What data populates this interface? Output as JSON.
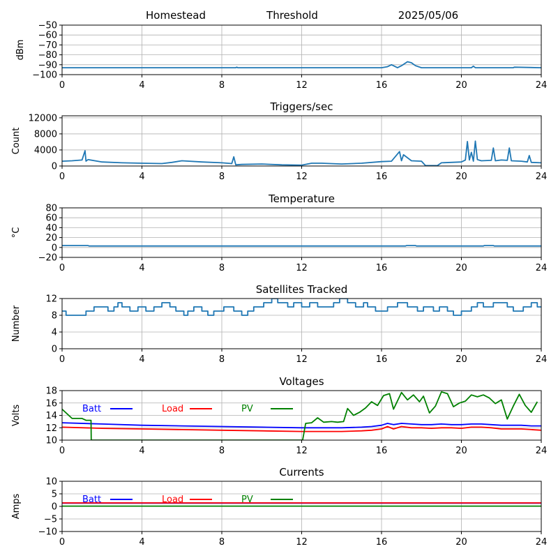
{
  "header": {
    "station": "Homestead",
    "mode": "Threshold",
    "date": "2025/05/06"
  },
  "chart_data": [
    {
      "type": "line",
      "title": "",
      "ylabel": "dBm",
      "xlim": [
        0,
        24
      ],
      "ylim": [
        -100,
        -50
      ],
      "x_ticks": [
        0,
        4,
        8,
        12,
        16,
        20,
        24
      ],
      "y_ticks": [
        -100,
        -90,
        -80,
        -70,
        -60,
        -50
      ],
      "y_tick_labels": [
        "−100",
        "−90",
        "−80",
        "−70",
        "−60",
        "−50"
      ],
      "grid": true,
      "series": [
        {
          "color": "#1f77b4",
          "x": [
            0,
            8.7,
            8.75,
            8.8,
            16,
            16.3,
            16.5,
            16.8,
            17.0,
            17.3,
            17.5,
            17.7,
            18.0,
            18.3,
            20.5,
            20.6,
            20.7,
            22.6,
            22.65,
            24
          ],
          "y": [
            -93,
            -93,
            -92.5,
            -93,
            -93,
            -92,
            -90,
            -93,
            -91,
            -87,
            -88,
            -91,
            -93,
            -93,
            -93,
            -91.5,
            -93,
            -93,
            -92.5,
            -93
          ]
        }
      ]
    },
    {
      "type": "line",
      "title": "Triggers/sec",
      "ylabel": "Count",
      "xlim": [
        0,
        24
      ],
      "ylim": [
        0,
        12500
      ],
      "x_ticks": [
        0,
        4,
        8,
        12,
        16,
        20,
        24
      ],
      "y_ticks": [
        0,
        4000,
        8000,
        12000
      ],
      "y_tick_labels": [
        "0",
        "4000",
        "8000",
        "12000"
      ],
      "grid": true,
      "series": [
        {
          "color": "#1f77b4",
          "x": [
            0,
            0.5,
            1.0,
            1.15,
            1.2,
            1.3,
            2,
            3,
            4,
            5,
            5.5,
            6,
            7,
            8,
            8.5,
            8.6,
            8.7,
            9,
            10,
            11,
            12,
            12.5,
            13,
            14,
            15,
            16,
            16.5,
            16.9,
            17.0,
            17.1,
            17.5,
            18,
            18.2,
            18.8,
            19,
            20,
            20.2,
            20.3,
            20.4,
            20.5,
            20.6,
            20.7,
            20.8,
            21,
            21.5,
            21.6,
            21.7,
            22,
            22.3,
            22.4,
            22.5,
            23,
            23.3,
            23.4,
            23.5,
            24
          ],
          "y": [
            1200,
            1300,
            1500,
            3800,
            1200,
            1600,
            1000,
            800,
            700,
            600,
            900,
            1300,
            1000,
            800,
            600,
            2300,
            300,
            400,
            500,
            300,
            200,
            700,
            700,
            500,
            700,
            1100,
            1200,
            3600,
            1300,
            2800,
            1300,
            1200,
            100,
            100,
            800,
            1000,
            1500,
            6100,
            1500,
            3400,
            1200,
            6200,
            1600,
            1300,
            1400,
            4500,
            1300,
            1500,
            1400,
            4500,
            1300,
            1200,
            1000,
            2600,
            900,
            800
          ]
        }
      ]
    },
    {
      "type": "line",
      "title": "Temperature",
      "ylabel": "°C",
      "xlim": [
        0,
        24
      ],
      "ylim": [
        -20,
        80
      ],
      "x_ticks": [
        0,
        4,
        8,
        12,
        16,
        20,
        24
      ],
      "y_ticks": [
        -20,
        0,
        20,
        40,
        60,
        80
      ],
      "y_tick_labels": [
        "−20",
        "0",
        "20",
        "40",
        "60",
        "80"
      ],
      "grid": true,
      "series": [
        {
          "color": "#1f77b4",
          "x": [
            0,
            1.3,
            1.35,
            17.2,
            17.25,
            17.7,
            17.75,
            21.1,
            21.15,
            21.6,
            21.65,
            24
          ],
          "y": [
            4,
            4,
            3,
            3,
            4,
            4,
            3,
            3,
            4,
            4,
            3,
            3
          ]
        }
      ]
    },
    {
      "type": "line",
      "title": "Satellites Tracked",
      "ylabel": "Number",
      "xlim": [
        0,
        24
      ],
      "ylim": [
        0,
        12
      ],
      "x_ticks": [
        0,
        4,
        8,
        12,
        16,
        20,
        24
      ],
      "y_ticks": [
        0,
        4,
        8,
        12
      ],
      "y_tick_labels": [
        "0",
        "4",
        "8",
        "12"
      ],
      "grid": true,
      "series": [
        {
          "color": "#1f77b4",
          "step": true,
          "x": [
            0,
            0.2,
            1.2,
            1.6,
            2.3,
            2.6,
            2.8,
            3.0,
            3.4,
            3.8,
            4.2,
            4.6,
            5.0,
            5.4,
            5.7,
            6.1,
            6.3,
            6.6,
            7.0,
            7.3,
            7.6,
            8.1,
            8.6,
            9.0,
            9.3,
            9.6,
            10.1,
            10.5,
            10.8,
            11.3,
            11.6,
            12.0,
            12.4,
            12.8,
            13.6,
            13.9,
            14.3,
            14.7,
            15.1,
            15.3,
            15.7,
            16.3,
            16.8,
            17.3,
            17.8,
            18.1,
            18.6,
            18.9,
            19.3,
            19.6,
            20.0,
            20.5,
            20.8,
            21.1,
            21.6,
            22.3,
            22.6,
            23.1,
            23.5,
            23.8
          ],
          "y": [
            9,
            8,
            9,
            10,
            9,
            10,
            11,
            10,
            9,
            10,
            9,
            10,
            11,
            10,
            9,
            8,
            9,
            10,
            9,
            8,
            9,
            10,
            9,
            8,
            9,
            10,
            11,
            12,
            11,
            10,
            11,
            10,
            11,
            10,
            11,
            12,
            11,
            10,
            11,
            10,
            9,
            10,
            11,
            10,
            9,
            10,
            9,
            10,
            9,
            8,
            9,
            10,
            11,
            10,
            11,
            10,
            9,
            10,
            11,
            10
          ]
        }
      ]
    },
    {
      "type": "line",
      "title": "Voltages",
      "ylabel": "Volts",
      "xlim": [
        0,
        24
      ],
      "ylim": [
        10,
        18
      ],
      "x_ticks": [
        0,
        4,
        8,
        12,
        16,
        20,
        24
      ],
      "y_ticks": [
        10,
        12,
        14,
        16,
        18
      ],
      "y_tick_labels": [
        "10",
        "12",
        "14",
        "16",
        "18"
      ],
      "grid": true,
      "legend": [
        {
          "label": "Batt",
          "color": "#0000ff"
        },
        {
          "label": "Load",
          "color": "#ff0000"
        },
        {
          "label": "PV",
          "color": "#008000"
        }
      ],
      "series": [
        {
          "name": "Batt",
          "color": "#0000ff",
          "x": [
            0,
            2,
            4,
            6,
            8,
            10,
            12,
            14,
            15,
            15.5,
            16,
            16.3,
            16.6,
            17,
            17.5,
            18,
            18.5,
            19,
            19.5,
            20,
            20.5,
            21,
            21.5,
            22,
            22.5,
            23,
            23.5,
            24
          ],
          "y": [
            12.8,
            12.6,
            12.4,
            12.3,
            12.2,
            12.1,
            12.0,
            12.0,
            12.1,
            12.2,
            12.4,
            12.7,
            12.5,
            12.7,
            12.6,
            12.5,
            12.5,
            12.6,
            12.5,
            12.5,
            12.6,
            12.6,
            12.5,
            12.4,
            12.4,
            12.4,
            12.3,
            12.3
          ],
          "y_adj": [
            12.8,
            12.6,
            12.4,
            12.3,
            12.2,
            12.1,
            12.0,
            12.0,
            12.1,
            12.2,
            12.4,
            12.8,
            12.5,
            12.9,
            12.6,
            12.6,
            12.5,
            12.7,
            12.6,
            12.5,
            12.7,
            12.8,
            12.6,
            12.4,
            12.5,
            12.4,
            12.3,
            12.3
          ]
        },
        {
          "name": "Load",
          "color": "#ff0000",
          "x": [
            0,
            2,
            4,
            6,
            8,
            10,
            12,
            14,
            15,
            15.5,
            16,
            16.3,
            16.6,
            17,
            17.5,
            18,
            18.5,
            19,
            19.5,
            20,
            20.5,
            21,
            21.5,
            22,
            22.5,
            23,
            23.5,
            24
          ],
          "y": [
            12.1,
            11.9,
            11.8,
            11.7,
            11.6,
            11.5,
            11.4,
            11.4,
            11.5,
            11.6,
            11.8,
            12.2,
            11.8,
            12.2,
            12.0,
            12.0,
            11.9,
            12.0,
            12.0,
            11.9,
            12.1,
            12.1,
            12.0,
            11.8,
            11.8,
            11.8,
            11.7,
            11.6
          ]
        },
        {
          "name": "PV",
          "color": "#008000",
          "x": [
            0,
            0.5,
            1.0,
            1.2,
            1.45,
            1.46,
            12.05,
            12.2,
            12.5,
            12.8,
            13.1,
            13.5,
            13.8,
            14.1,
            14.3,
            14.6,
            14.9,
            15.2,
            15.5,
            15.8,
            16.1,
            16.4,
            16.6,
            17.0,
            17.3,
            17.6,
            17.9,
            18.1,
            18.4,
            18.7,
            19.0,
            19.3,
            19.6,
            19.9,
            20.2,
            20.5,
            20.8,
            21.1,
            21.4,
            21.7,
            22.0,
            22.3,
            22.6,
            22.9,
            23.2,
            23.5,
            23.8
          ],
          "y": [
            15.0,
            13.5,
            13.5,
            13.2,
            13.2,
            10.0,
            10.0,
            12.7,
            12.8,
            13.6,
            12.9,
            13.0,
            12.9,
            13.0,
            15.1,
            14.0,
            14.5,
            15.2,
            16.2,
            15.6,
            17.2,
            17.5,
            15.0,
            17.7,
            16.5,
            17.3,
            16.2,
            17.1,
            14.4,
            15.5,
            17.8,
            17.5,
            15.4,
            16.0,
            16.3,
            17.3,
            17.0,
            17.3,
            16.8,
            15.9,
            16.5,
            13.4,
            15.5,
            17.4,
            15.6,
            14.5,
            16.2
          ]
        }
      ]
    },
    {
      "type": "line",
      "title": "Currents",
      "ylabel": "Amps",
      "xlim": [
        0,
        24
      ],
      "ylim": [
        -10,
        10
      ],
      "x_ticks": [
        0,
        4,
        8,
        12,
        16,
        20,
        24
      ],
      "y_ticks": [
        -10,
        -5,
        0,
        5,
        10
      ],
      "y_tick_labels": [
        "−10",
        "−5",
        "0",
        "5",
        "10"
      ],
      "grid": true,
      "legend": [
        {
          "label": "Batt",
          "color": "#0000ff"
        },
        {
          "label": "Load",
          "color": "#ff0000"
        },
        {
          "label": "PV",
          "color": "#008000"
        }
      ],
      "series": [
        {
          "name": "Batt",
          "color": "#0000ff",
          "x": [
            0,
            24
          ],
          "y": [
            1.3,
            1.3
          ]
        },
        {
          "name": "Load",
          "color": "#ff0000",
          "x": [
            0,
            24
          ],
          "y": [
            1.4,
            1.4
          ]
        },
        {
          "name": "PV",
          "color": "#008000",
          "x": [
            0,
            24
          ],
          "y": [
            0.1,
            0.1
          ]
        }
      ]
    }
  ]
}
